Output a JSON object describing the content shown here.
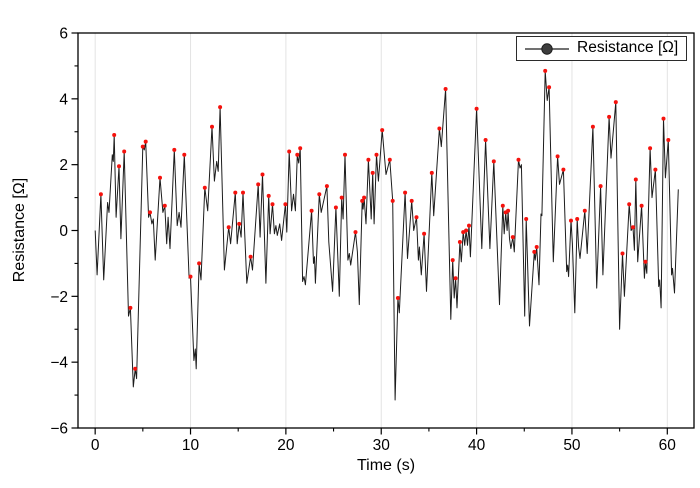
{
  "figure": {
    "legend": {
      "label": "Resistance [Ω]"
    },
    "axes": {
      "xlabel": "Time (s)",
      "ylabel": "Resistance [Ω]",
      "xlim": [
        -1.8,
        62.8
      ],
      "ylim": [
        -6,
        6
      ],
      "x_ticks": [
        0,
        10,
        20,
        30,
        40,
        50,
        60
      ],
      "x_minor_ticks": [
        5,
        15,
        25,
        35,
        45,
        55
      ],
      "y_ticks": [
        -6,
        -4,
        -2,
        0,
        2,
        4,
        6
      ],
      "y_minor_ticks": [
        -5,
        -3,
        -1,
        1,
        3,
        5
      ],
      "grid": "vertical-major-only"
    },
    "colors": {
      "line": "#1c1c1c",
      "peak": "#f5120d",
      "grid": "#e3e3e3",
      "frame": "#000000",
      "legend_marker": "#3d3d3d"
    }
  },
  "chart_data": {
    "type": "line",
    "title": "",
    "xlabel": "Time (s)",
    "ylabel": "Resistance [Ω]",
    "xlim": [
      -1.8,
      62.8
    ],
    "ylim": [
      -6,
      6
    ],
    "grid": "vertical gridlines at major x ticks",
    "legend": [
      "Resistance [Ω]"
    ],
    "legend_position": "top-right",
    "marker_note": "red dots flag local maxima (third element of point = 1)",
    "series": [
      {
        "name": "Resistance [Ω]",
        "points": [
          [
            0,
            0,
            0
          ],
          [
            0.2,
            -1.35,
            0
          ],
          [
            0.6,
            1.1,
            1
          ],
          [
            0.9,
            -1.5,
            0
          ],
          [
            1.3,
            0.85,
            0
          ],
          [
            1.45,
            0.55,
            0
          ],
          [
            1.8,
            2.3,
            0
          ],
          [
            1.9,
            2.1,
            0
          ],
          [
            2.0,
            2.9,
            1
          ],
          [
            2.2,
            0.4,
            0
          ],
          [
            2.5,
            1.95,
            1
          ],
          [
            2.7,
            -0.25,
            0
          ],
          [
            3.05,
            2.4,
            1
          ],
          [
            3.5,
            -2.6,
            0
          ],
          [
            3.7,
            -2.35,
            1
          ],
          [
            4.0,
            -4.75,
            0
          ],
          [
            4.2,
            -4.2,
            1
          ],
          [
            4.35,
            -4.5,
            0
          ],
          [
            5.0,
            2.55,
            1
          ],
          [
            5.15,
            2.45,
            0
          ],
          [
            5.3,
            2.7,
            1
          ],
          [
            5.6,
            0.4,
            0
          ],
          [
            5.75,
            0.55,
            1
          ],
          [
            5.95,
            0.2,
            0
          ],
          [
            6.1,
            0.35,
            0
          ],
          [
            6.3,
            -0.9,
            0
          ],
          [
            6.8,
            1.6,
            1
          ],
          [
            7.1,
            0.55,
            0
          ],
          [
            7.3,
            0.75,
            1
          ],
          [
            7.5,
            -0.4,
            0
          ],
          [
            7.65,
            0.4,
            0
          ],
          [
            7.85,
            -0.55,
            0
          ],
          [
            8.3,
            2.45,
            1
          ],
          [
            8.6,
            0.15,
            0
          ],
          [
            8.8,
            0.55,
            0
          ],
          [
            9.0,
            0.1,
            0
          ],
          [
            9.35,
            2.3,
            1
          ],
          [
            9.85,
            -1.45,
            0
          ],
          [
            10.0,
            -1.4,
            1
          ],
          [
            10.35,
            -3.95,
            0
          ],
          [
            10.5,
            -3.6,
            0
          ],
          [
            10.6,
            -4.2,
            0
          ],
          [
            10.9,
            -1.0,
            1
          ],
          [
            11.1,
            -1.5,
            0
          ],
          [
            11.5,
            1.3,
            1
          ],
          [
            11.8,
            0.6,
            0
          ],
          [
            12.25,
            3.15,
            1
          ],
          [
            12.5,
            1.5,
            0
          ],
          [
            12.75,
            2.1,
            0
          ],
          [
            12.9,
            1.8,
            0
          ],
          [
            13.1,
            3.75,
            1
          ],
          [
            13.55,
            -1.2,
            0
          ],
          [
            14.0,
            0.1,
            1
          ],
          [
            14.2,
            -0.4,
            0
          ],
          [
            14.7,
            1.15,
            1
          ],
          [
            14.9,
            -0.4,
            0
          ],
          [
            15.1,
            0.2,
            1
          ],
          [
            15.3,
            -0.2,
            0
          ],
          [
            15.5,
            1.15,
            1
          ],
          [
            15.9,
            -1.6,
            0
          ],
          [
            16.3,
            -0.8,
            1
          ],
          [
            16.5,
            -1.2,
            0
          ],
          [
            17.1,
            1.4,
            1
          ],
          [
            17.3,
            -0.2,
            0
          ],
          [
            17.55,
            1.7,
            1
          ],
          [
            17.9,
            -1.6,
            0
          ],
          [
            18.2,
            1.05,
            1
          ],
          [
            18.35,
            -0.1,
            0
          ],
          [
            18.6,
            0.8,
            1
          ],
          [
            18.8,
            -0.1,
            0
          ],
          [
            18.95,
            0.15,
            0
          ],
          [
            19.1,
            -0.15,
            0
          ],
          [
            19.35,
            0.2,
            0
          ],
          [
            19.55,
            -0.3,
            0
          ],
          [
            19.95,
            0.8,
            1
          ],
          [
            20.1,
            -0.05,
            0
          ],
          [
            20.35,
            2.4,
            1
          ],
          [
            20.6,
            0.6,
            0
          ],
          [
            20.8,
            1.1,
            0
          ],
          [
            21.0,
            0.6,
            0
          ],
          [
            21.2,
            2.3,
            1
          ],
          [
            21.35,
            2.05,
            0
          ],
          [
            21.5,
            2.5,
            1
          ],
          [
            21.75,
            -1.55,
            0
          ],
          [
            21.9,
            -1.4,
            0
          ],
          [
            22.05,
            -1.65,
            0
          ],
          [
            22.7,
            0.6,
            1
          ],
          [
            22.9,
            -1.0,
            0
          ],
          [
            23.0,
            -0.8,
            0
          ],
          [
            23.1,
            -1.6,
            0
          ],
          [
            23.5,
            1.1,
            1
          ],
          [
            23.7,
            0.55,
            0
          ],
          [
            24.3,
            1.35,
            1
          ],
          [
            24.5,
            -0.35,
            0
          ],
          [
            24.9,
            -1.85,
            0
          ],
          [
            25.25,
            0.7,
            1
          ],
          [
            25.6,
            -2.0,
            0
          ],
          [
            25.85,
            1.0,
            1
          ],
          [
            26.0,
            0.35,
            0
          ],
          [
            26.2,
            2.3,
            1
          ],
          [
            26.5,
            -0.9,
            0
          ],
          [
            26.65,
            -0.7,
            0
          ],
          [
            26.8,
            -1.05,
            0
          ],
          [
            27.3,
            -0.05,
            1
          ],
          [
            27.5,
            -0.65,
            0
          ],
          [
            27.7,
            -2.25,
            0
          ],
          [
            28.0,
            0.9,
            1
          ],
          [
            28.1,
            0.65,
            0
          ],
          [
            28.2,
            1.0,
            1
          ],
          [
            28.4,
            0.2,
            0
          ],
          [
            28.65,
            2.15,
            1
          ],
          [
            28.8,
            1.25,
            0
          ],
          [
            28.95,
            0.35,
            0
          ],
          [
            29.1,
            1.75,
            1
          ],
          [
            29.25,
            0.2,
            0
          ],
          [
            29.5,
            2.3,
            1
          ],
          [
            29.7,
            1.5,
            0
          ],
          [
            30.1,
            3.05,
            1
          ],
          [
            30.5,
            1.7,
            0
          ],
          [
            30.9,
            2.15,
            1
          ],
          [
            31.2,
            0.9,
            1
          ],
          [
            31.45,
            -5.15,
            0
          ],
          [
            31.75,
            -2.05,
            1
          ],
          [
            31.9,
            -2.5,
            0
          ],
          [
            32.5,
            1.15,
            1
          ],
          [
            32.75,
            -0.85,
            0
          ],
          [
            33.2,
            0.9,
            1
          ],
          [
            33.4,
            0.0,
            0
          ],
          [
            33.7,
            0.4,
            1
          ],
          [
            33.9,
            -0.9,
            0
          ],
          [
            34.0,
            -0.5,
            0
          ],
          [
            34.2,
            -1.35,
            0
          ],
          [
            34.5,
            -0.1,
            1
          ],
          [
            34.75,
            -1.85,
            0
          ],
          [
            35.3,
            1.75,
            1
          ],
          [
            35.5,
            0.45,
            0
          ],
          [
            36.1,
            3.1,
            1
          ],
          [
            36.3,
            2.55,
            0
          ],
          [
            36.75,
            4.3,
            1
          ],
          [
            37.3,
            -2.7,
            0
          ],
          [
            37.5,
            -0.9,
            1
          ],
          [
            37.65,
            -2.05,
            0
          ],
          [
            37.8,
            -1.45,
            1
          ],
          [
            37.95,
            -2.35,
            0
          ],
          [
            38.25,
            -0.35,
            1
          ],
          [
            38.4,
            -0.95,
            0
          ],
          [
            38.6,
            -0.05,
            1
          ],
          [
            38.75,
            -0.45,
            0
          ],
          [
            38.9,
            0.0,
            1
          ],
          [
            39.05,
            -0.45,
            0
          ],
          [
            39.2,
            0.15,
            1
          ],
          [
            39.35,
            -0.8,
            0
          ],
          [
            40.0,
            3.7,
            1
          ],
          [
            40.55,
            -0.55,
            0
          ],
          [
            40.95,
            2.75,
            1
          ],
          [
            41.4,
            -0.55,
            0
          ],
          [
            41.8,
            2.1,
            1
          ],
          [
            42.4,
            -2.25,
            0
          ],
          [
            42.75,
            0.75,
            1
          ],
          [
            42.9,
            -0.1,
            0
          ],
          [
            43.05,
            0.55,
            1
          ],
          [
            43.2,
            0.0,
            0
          ],
          [
            43.3,
            0.6,
            1
          ],
          [
            43.45,
            -0.25,
            0
          ],
          [
            43.6,
            -0.55,
            0
          ],
          [
            43.8,
            -0.2,
            1
          ],
          [
            43.95,
            -0.65,
            0
          ],
          [
            44.4,
            2.15,
            1
          ],
          [
            44.55,
            1.9,
            0
          ],
          [
            44.7,
            2.0,
            0
          ],
          [
            45.05,
            -2.6,
            0
          ],
          [
            45.2,
            0.35,
            1
          ],
          [
            45.55,
            -2.9,
            0
          ],
          [
            46.05,
            -0.65,
            1
          ],
          [
            46.15,
            -0.9,
            0
          ],
          [
            46.3,
            -0.5,
            1
          ],
          [
            46.55,
            -1.65,
            0
          ],
          [
            46.75,
            0.5,
            0
          ],
          [
            46.85,
            0.45,
            0
          ],
          [
            47.2,
            4.85,
            1
          ],
          [
            47.4,
            3.95,
            0
          ],
          [
            47.6,
            4.35,
            1
          ],
          [
            48.05,
            -0.95,
            0
          ],
          [
            48.5,
            2.25,
            1
          ],
          [
            48.7,
            1.4,
            0
          ],
          [
            49.1,
            1.85,
            1
          ],
          [
            49.45,
            -1.25,
            0
          ],
          [
            49.55,
            -1.05,
            0
          ],
          [
            49.65,
            -1.4,
            0
          ],
          [
            49.9,
            0.3,
            1
          ],
          [
            50.05,
            -0.4,
            0
          ],
          [
            50.3,
            -2.5,
            0
          ],
          [
            50.55,
            0.35,
            1
          ],
          [
            50.7,
            -0.5,
            0
          ],
          [
            50.85,
            -0.85,
            0
          ],
          [
            51.35,
            0.6,
            1
          ],
          [
            51.6,
            -0.7,
            0
          ],
          [
            52.2,
            3.15,
            1
          ],
          [
            52.6,
            -1.75,
            0
          ],
          [
            53.0,
            1.35,
            1
          ],
          [
            53.25,
            -1.35,
            0
          ],
          [
            53.9,
            3.45,
            1
          ],
          [
            54.1,
            2.2,
            0
          ],
          [
            54.6,
            3.9,
            1
          ],
          [
            55.0,
            -3.0,
            0
          ],
          [
            55.3,
            -0.7,
            1
          ],
          [
            55.5,
            -2.0,
            0
          ],
          [
            56.0,
            0.8,
            1
          ],
          [
            56.2,
            0.0,
            0
          ],
          [
            56.4,
            0.1,
            1
          ],
          [
            56.55,
            -0.6,
            0
          ],
          [
            56.7,
            1.55,
            1
          ],
          [
            56.9,
            -0.95,
            0
          ],
          [
            57.3,
            0.75,
            1
          ],
          [
            57.6,
            -1.45,
            0
          ],
          [
            57.7,
            -0.95,
            1
          ],
          [
            57.85,
            -1.3,
            0
          ],
          [
            58.2,
            2.5,
            1
          ],
          [
            58.4,
            1.0,
            0
          ],
          [
            58.75,
            1.85,
            1
          ],
          [
            59.1,
            -1.7,
            0
          ],
          [
            59.2,
            -1.5,
            0
          ],
          [
            59.35,
            -2.35,
            0
          ],
          [
            59.6,
            3.4,
            1
          ],
          [
            59.8,
            1.6,
            0
          ],
          [
            60.1,
            2.75,
            1
          ],
          [
            60.45,
            -1.35,
            0
          ],
          [
            60.55,
            -1.15,
            0
          ],
          [
            60.75,
            -1.9,
            0
          ],
          [
            61.15,
            1.25,
            0
          ]
        ]
      }
    ]
  }
}
